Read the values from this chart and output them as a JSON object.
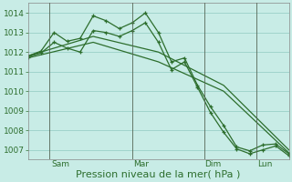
{
  "background_color": "#c8ece6",
  "grid_color": "#a0d4cc",
  "line_color": "#2d6e2d",
  "ylim": [
    1006.5,
    1014.5
  ],
  "yticks": [
    1007,
    1008,
    1009,
    1010,
    1011,
    1012,
    1013,
    1014
  ],
  "xlabel": "Pression niveau de la mer( hPa )",
  "xlabel_fontsize": 8,
  "tick_fontsize": 6.5,
  "day_labels": [
    "Sam",
    "Mar",
    "Dim",
    "Lun"
  ],
  "series": [
    {
      "x": [
        0,
        1,
        2,
        3,
        4,
        5,
        6,
        7,
        8,
        9,
        10,
        11,
        12,
        13,
        14,
        15,
        16,
        17,
        18,
        19,
        20
      ],
      "y": [
        1011.8,
        1012.05,
        1013.0,
        1012.55,
        1012.7,
        1013.85,
        1013.6,
        1013.2,
        1013.5,
        1014.0,
        1013.0,
        1011.5,
        1011.7,
        1010.3,
        1009.2,
        1008.25,
        1007.15,
        1006.95,
        1007.25,
        1007.3,
        1006.8
      ],
      "marker": "+"
    },
    {
      "x": [
        0,
        1,
        2,
        3,
        4,
        5,
        6,
        7,
        8,
        9,
        10,
        11,
        12,
        13,
        14,
        15,
        16,
        17,
        18,
        19,
        20
      ],
      "y": [
        1011.75,
        1011.95,
        1012.5,
        1012.2,
        1012.0,
        1013.1,
        1013.0,
        1012.8,
        1013.1,
        1013.5,
        1012.5,
        1011.1,
        1011.5,
        1010.2,
        1008.9,
        1007.9,
        1007.05,
        1006.8,
        1007.0,
        1007.2,
        1006.7
      ],
      "marker": "+"
    },
    {
      "x": [
        0,
        5,
        10,
        15,
        20
      ],
      "y": [
        1011.8,
        1012.8,
        1012.0,
        1010.3,
        1007.0
      ],
      "marker": null
    },
    {
      "x": [
        0,
        5,
        10,
        15,
        20
      ],
      "y": [
        1011.7,
        1012.5,
        1011.5,
        1010.0,
        1006.85
      ],
      "marker": null
    }
  ],
  "vline_positions": [
    1.6,
    8.0,
    13.5,
    17.5
  ],
  "vline_color": "#556655",
  "vline_lw": 0.6
}
